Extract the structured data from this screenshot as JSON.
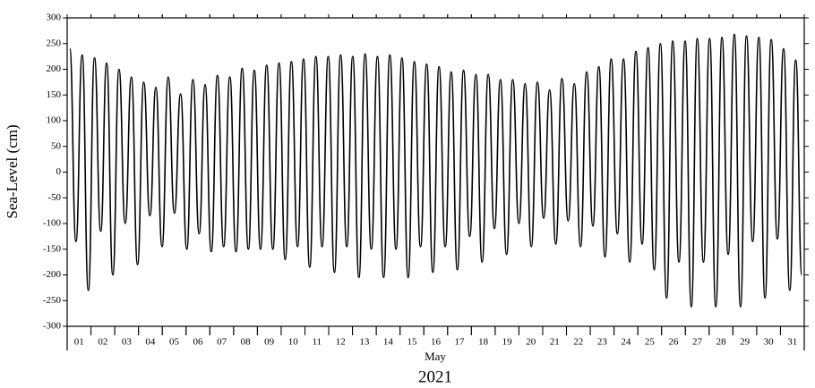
{
  "chart_data": {
    "type": "line",
    "y_label": "Sea-Level (cm)",
    "x_label": "May",
    "x_sublabel": "2021",
    "xlim": [
      0,
      31
    ],
    "ylim": [
      -300,
      300
    ],
    "yticks": [
      -300,
      -250,
      -200,
      -150,
      -100,
      -50,
      0,
      50,
      100,
      150,
      200,
      250,
      300
    ],
    "xticks": [
      {
        "value": 0.5,
        "label": "01"
      },
      {
        "value": 1.5,
        "label": "02"
      },
      {
        "value": 2.5,
        "label": "03"
      },
      {
        "value": 3.5,
        "label": "04"
      },
      {
        "value": 4.5,
        "label": "05"
      },
      {
        "value": 5.5,
        "label": "06"
      },
      {
        "value": 6.5,
        "label": "07"
      },
      {
        "value": 7.5,
        "label": "08"
      },
      {
        "value": 8.5,
        "label": "09"
      },
      {
        "value": 9.5,
        "label": "10"
      },
      {
        "value": 10.5,
        "label": "11"
      },
      {
        "value": 11.5,
        "label": "12"
      },
      {
        "value": 12.5,
        "label": "13"
      },
      {
        "value": 13.5,
        "label": "14"
      },
      {
        "value": 14.5,
        "label": "15"
      },
      {
        "value": 15.5,
        "label": "16"
      },
      {
        "value": 16.5,
        "label": "17"
      },
      {
        "value": 17.5,
        "label": "18"
      },
      {
        "value": 18.5,
        "label": "19"
      },
      {
        "value": 19.5,
        "label": "20"
      },
      {
        "value": 20.5,
        "label": "21"
      },
      {
        "value": 21.5,
        "label": "22"
      },
      {
        "value": 22.5,
        "label": "23"
      },
      {
        "value": 23.5,
        "label": "24"
      },
      {
        "value": 24.5,
        "label": "25"
      },
      {
        "value": 25.5,
        "label": "26"
      },
      {
        "value": 26.5,
        "label": "27"
      },
      {
        "value": 27.5,
        "label": "28"
      },
      {
        "value": 28.5,
        "label": "29"
      },
      {
        "value": 29.5,
        "label": "30"
      },
      {
        "value": 30.5,
        "label": "31"
      }
    ],
    "color": "#000000",
    "x": [
      0.11,
      0.37,
      0.63,
      0.89,
      1.15,
      1.41,
      1.66,
      1.92,
      2.18,
      2.44,
      2.7,
      2.96,
      3.22,
      3.48,
      3.73,
      3.99,
      4.25,
      4.51,
      4.77,
      5.03,
      5.29,
      5.55,
      5.8,
      6.06,
      6.32,
      6.58,
      6.84,
      7.1,
      7.36,
      7.62,
      7.87,
      8.13,
      8.39,
      8.65,
      8.91,
      9.17,
      9.43,
      9.69,
      9.94,
      10.2,
      10.46,
      10.72,
      10.98,
      11.24,
      11.5,
      11.76,
      12.01,
      12.27,
      12.53,
      12.79,
      13.05,
      13.31,
      13.57,
      13.83,
      14.08,
      14.34,
      14.6,
      14.86,
      15.12,
      15.38,
      15.64,
      15.9,
      16.15,
      16.41,
      16.67,
      16.93,
      17.19,
      17.45,
      17.71,
      17.97,
      18.22,
      18.48,
      18.74,
      19.0,
      19.26,
      19.52,
      19.78,
      20.04,
      20.29,
      20.55,
      20.81,
      21.07,
      21.33,
      21.59,
      21.85,
      22.11,
      22.36,
      22.62,
      22.88,
      23.14,
      23.4,
      23.66,
      23.92,
      24.18,
      24.43,
      24.69,
      24.95,
      25.21,
      25.47,
      25.73,
      25.99,
      26.25,
      26.5,
      26.76,
      27.02,
      27.28,
      27.54,
      27.8,
      28.06,
      28.32,
      28.57,
      28.83,
      29.09,
      29.35,
      29.61,
      29.87,
      30.13,
      30.39,
      30.64,
      30.9
    ],
    "values": [
      240,
      -135,
      228,
      -230,
      222,
      -115,
      212,
      -200,
      200,
      -100,
      185,
      -180,
      175,
      -85,
      165,
      -145,
      185,
      -80,
      152,
      -150,
      180,
      -120,
      170,
      -155,
      188,
      -145,
      185,
      -155,
      202,
      -150,
      198,
      -150,
      208,
      -150,
      212,
      -170,
      215,
      -145,
      220,
      -185,
      225,
      -145,
      225,
      -195,
      228,
      -145,
      225,
      -205,
      230,
      -150,
      225,
      -205,
      228,
      -150,
      222,
      -205,
      215,
      -145,
      210,
      -195,
      205,
      -145,
      195,
      -190,
      198,
      -125,
      190,
      -175,
      190,
      -110,
      180,
      -160,
      180,
      -100,
      172,
      -145,
      175,
      -90,
      160,
      -140,
      182,
      -95,
      172,
      -145,
      195,
      -105,
      205,
      -165,
      220,
      -120,
      220,
      -175,
      235,
      -140,
      242,
      -190,
      250,
      -245,
      255,
      -175,
      255,
      -262,
      260,
      -175,
      260,
      -262,
      262,
      -160,
      268,
      -262,
      265,
      -135,
      262,
      -245,
      258,
      -130,
      240,
      -230,
      218,
      -200
    ]
  }
}
